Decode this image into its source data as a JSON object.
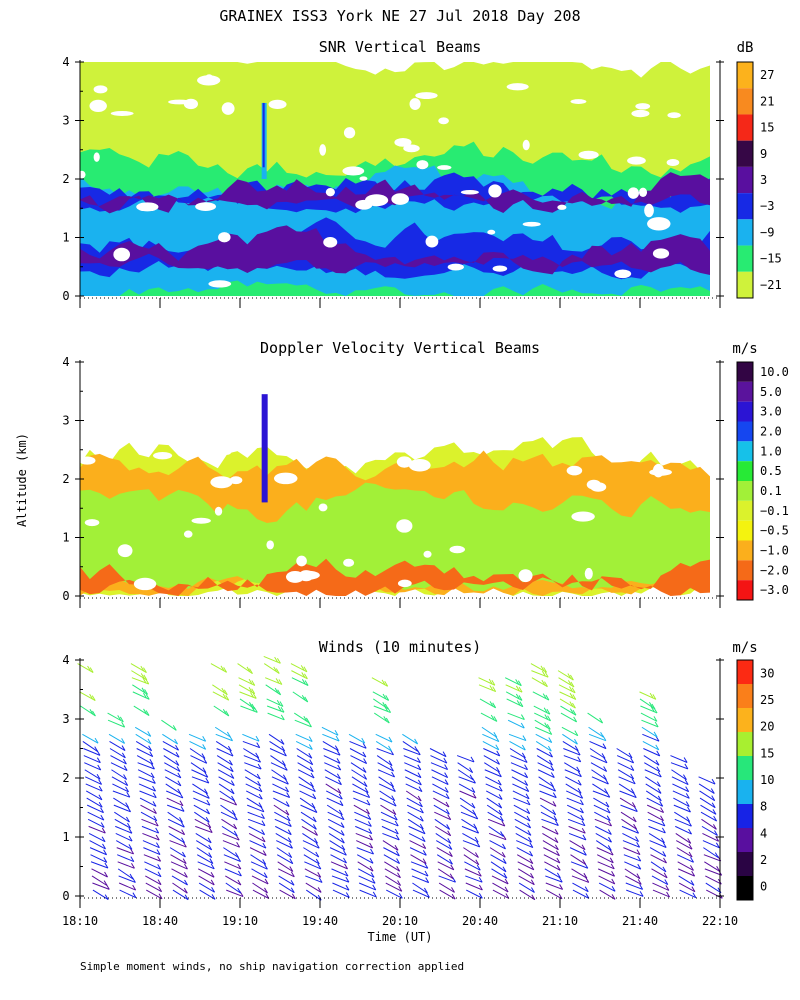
{
  "figure_title": "GRAINEX ISS3 York NE  27 Jul 2018 Day 208",
  "footnote": "Simple moment winds, no ship navigation correction applied",
  "chart_data": [
    {
      "type": "heatmap",
      "title": "SNR Vertical Beams",
      "ylabel": "Altitude (km)",
      "yticks": [
        "0",
        "1",
        "2",
        "3",
        "4"
      ],
      "ylim": [
        0,
        4
      ],
      "colorbar": {
        "unit": "dB",
        "labels": [
          "27",
          "21",
          "15",
          "9",
          "3",
          "−3",
          "−9",
          "−15",
          "−21"
        ],
        "colors": [
          "#fcb21c",
          "#f88a1f",
          "#f52818",
          "#360746",
          "#590f9f",
          "#1729e5",
          "#1ab2ef",
          "#28eb72",
          "#cff23b"
        ]
      },
      "layers": [
        {
          "color": "#cff23b",
          "ranges": [
            [
              0,
              4.0
            ]
          ]
        },
        {
          "color": "#28eb72",
          "ranges": [
            [
              0,
              2.3
            ]
          ]
        },
        {
          "color": "#1ab2ef",
          "ranges": [
            [
              0.1,
              1.85
            ]
          ]
        },
        {
          "color": "#1729e5",
          "ranges": [
            [
              0.45,
              0.95
            ],
            [
              1.55,
              1.8
            ]
          ]
        },
        {
          "color": "#590f9f",
          "ranges": [
            [
              0.55,
              0.8
            ],
            [
              1.65,
              1.75
            ]
          ]
        }
      ]
    },
    {
      "type": "heatmap",
      "title": "Doppler Velocity Vertical Beams",
      "ylabel": "Altitude (km)",
      "yticks": [
        "0",
        "1",
        "2",
        "3",
        "4"
      ],
      "ylim": [
        0,
        4
      ],
      "colorbar": {
        "unit": "m/s",
        "labels": [
          "10.0",
          "5.0",
          "3.0",
          "2.0",
          "1.0",
          "0.5",
          "0.1",
          "−0.1",
          "−0.5",
          "−1.0",
          "−2.0",
          "−3.0"
        ],
        "colors": [
          "#320544",
          "#5a139c",
          "#2b14d4",
          "#1546f0",
          "#16c1e9",
          "#27ea36",
          "#a2f038",
          "#dbf22c",
          "#f4f30f",
          "#fbaf1c",
          "#f56a18",
          "#f41414"
        ]
      },
      "layers": [
        {
          "color": "#dbf22c",
          "ranges": [
            [
              0.1,
              2.4
            ]
          ]
        },
        {
          "color": "#fbaf1c",
          "ranges": [
            [
              0.15,
              2.2
            ]
          ]
        },
        {
          "color": "#a2f038",
          "ranges": [
            [
              0.2,
              1.6
            ]
          ]
        },
        {
          "color": "#f56a18",
          "ranges": [
            [
              0.15,
              0.35
            ]
          ]
        }
      ]
    },
    {
      "type": "wind_barbs",
      "title": "Winds (10 minutes)",
      "ylabel": "Altitude (km)",
      "xlabel": "Time (UT)",
      "yticks": [
        "0",
        "1",
        "2",
        "3",
        "4"
      ],
      "ylim": [
        0,
        4
      ],
      "xticks": [
        "18:10",
        "18:40",
        "19:10",
        "19:40",
        "20:10",
        "20:40",
        "21:10",
        "21:40",
        "22:10"
      ],
      "colorbar": {
        "unit": "m/s",
        "labels": [
          "30",
          "25",
          "20",
          "15",
          "10",
          "8",
          "4",
          "2",
          "0"
        ],
        "colors": [
          "#fc2a13",
          "#fa7f1a",
          "#fcb21c",
          "#a8ef30",
          "#27e77a",
          "#19b2ef",
          "#1723e6",
          "#590f9f",
          "#2a0444",
          "#000000"
        ]
      },
      "profile_times_min_after_1810": [
        5,
        15,
        25,
        35,
        45,
        55,
        65,
        75,
        85,
        95,
        105,
        115,
        125,
        135,
        145,
        155,
        165,
        175,
        185,
        195,
        205,
        215,
        225,
        235
      ],
      "profile_top_km": [
        4.1,
        3.2,
        4.0,
        3.0,
        2.8,
        4.0,
        4.1,
        4.1,
        4.0,
        3.1,
        2.9,
        3.8,
        2.8,
        2.6,
        2.5,
        3.8,
        3.9,
        4.0,
        3.9,
        3.3,
        2.6,
        3.7,
        2.4,
        2.1
      ],
      "speed_by_height_m_s": [
        [
          0.5,
          4
        ],
        [
          2.5,
          6
        ],
        [
          3.1,
          12
        ],
        [
          4.0,
          18
        ]
      ]
    }
  ]
}
